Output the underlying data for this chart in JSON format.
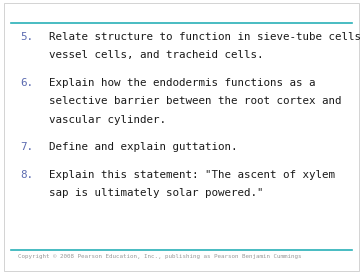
{
  "background_color": "#ffffff",
  "border_color": "#cccccc",
  "top_line_color": "#29b0b8",
  "bottom_line_color": "#29b0b8",
  "number_color": "#5b6ab0",
  "text_color": "#1a1a1a",
  "copyright_color": "#999999",
  "items": [
    {
      "number": "5.",
      "lines": [
        "Relate structure to function in sieve-tube cells,",
        "vessel cells, and tracheid cells."
      ]
    },
    {
      "number": "6.",
      "lines": [
        "Explain how the endodermis functions as a",
        "selective barrier between the root cortex and",
        "vascular cylinder."
      ]
    },
    {
      "number": "7.",
      "lines": [
        "Define and explain guttation."
      ]
    },
    {
      "number": "8.",
      "lines": [
        "Explain this statement: \"The ascent of xylem",
        "sap is ultimately solar powered.\""
      ]
    }
  ],
  "copyright_text": "Copyright © 2008 Pearson Education, Inc., publishing as Pearson Benjamin Cummings",
  "font_size": 7.8,
  "number_font_size": 7.8,
  "copyright_font_size": 4.2,
  "fig_width": 3.63,
  "fig_height": 2.74,
  "dpi": 100
}
